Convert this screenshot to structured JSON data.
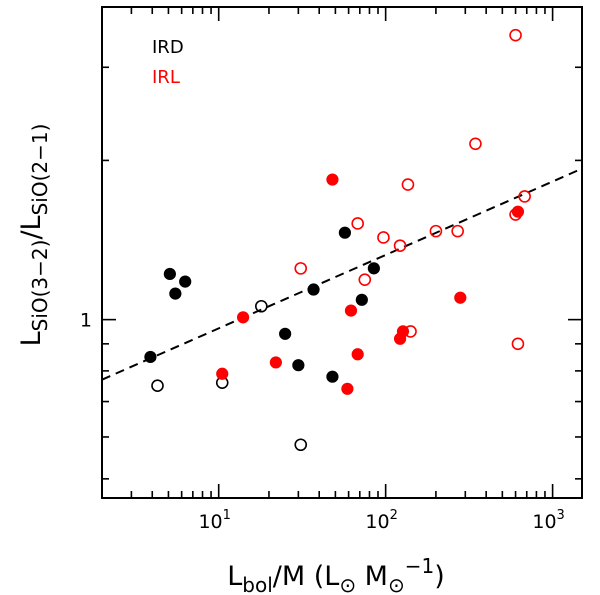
{
  "chart_data": {
    "type": "scatter",
    "title": "",
    "xscale": "log",
    "yscale": "log",
    "xlim": [
      2,
      1500
    ],
    "ylim": [
      0.46,
      3.9
    ],
    "grid": false,
    "legend": "top-left",
    "xlabel_main": "L",
    "xlabel_sub": "bol",
    "xlabel_tail": "/M (L",
    "xlabel_sun1": "⊙",
    "xlabel_mid": " M",
    "xlabel_sun2": "⊙",
    "xlabel_sup": "−1",
    "xlabel_close": ")",
    "ylabel_L1": "L",
    "ylabel_sub1": "SiO(3−2)",
    "ylabel_slash": "/L",
    "ylabel_sub2": "SiO(2−1)",
    "x_ticks": [
      {
        "value": 10,
        "base": "10",
        "exp": "1"
      },
      {
        "value": 100,
        "base": "10",
        "exp": "2"
      },
      {
        "value": 1000,
        "base": "10",
        "exp": "3"
      }
    ],
    "y_ticks": [
      {
        "value": 1,
        "label": "1"
      }
    ],
    "colors": {
      "IRD": "#000000",
      "IRL": "#ff0000"
    },
    "series": [
      {
        "name": "IRD",
        "color": "#000000",
        "filled_points": [
          [
            3.9,
            0.85
          ],
          [
            5.1,
            1.22
          ],
          [
            5.5,
            1.12
          ],
          [
            6.3,
            1.18
          ],
          [
            25,
            0.94
          ],
          [
            30,
            0.82
          ],
          [
            37,
            1.14
          ],
          [
            48,
            0.78
          ],
          [
            57,
            1.46
          ],
          [
            72,
            1.09
          ],
          [
            85,
            1.25
          ]
        ],
        "open_points": [
          [
            4.3,
            0.75
          ],
          [
            10.5,
            0.76
          ],
          [
            18,
            1.06
          ],
          [
            31,
            0.58
          ]
        ]
      },
      {
        "name": "IRL",
        "color": "#ff0000",
        "filled_points": [
          [
            10.5,
            0.79
          ],
          [
            14,
            1.01
          ],
          [
            22,
            0.83
          ],
          [
            48,
            1.84
          ],
          [
            59,
            0.74
          ],
          [
            62,
            1.04
          ],
          [
            68,
            0.86
          ],
          [
            122,
            0.92
          ],
          [
            127,
            0.95
          ],
          [
            280,
            1.1
          ],
          [
            620,
            1.6
          ]
        ],
        "open_points": [
          [
            31,
            1.25
          ],
          [
            68,
            1.52
          ],
          [
            75,
            1.19
          ],
          [
            97,
            1.43
          ],
          [
            122,
            1.38
          ],
          [
            136,
            1.8
          ],
          [
            141,
            0.95
          ],
          [
            200,
            1.47
          ],
          [
            270,
            1.47
          ],
          [
            345,
            2.15
          ],
          [
            600,
            3.45
          ],
          [
            600,
            1.58
          ],
          [
            620,
            0.9
          ],
          [
            680,
            1.71
          ]
        ]
      }
    ],
    "fit_line": {
      "style": "dashed",
      "x": [
        2,
        1500
      ],
      "y": [
        0.77,
        1.93
      ]
    },
    "legend_entries": [
      {
        "label": "IRD",
        "color": "#000000"
      },
      {
        "label": "IRL",
        "color": "#ff0000"
      }
    ]
  }
}
